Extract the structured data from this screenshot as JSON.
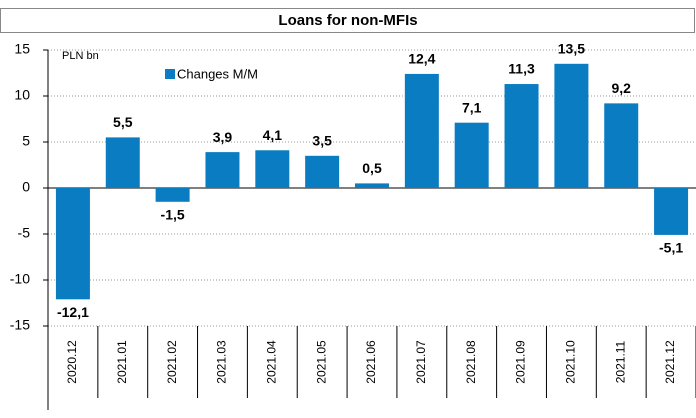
{
  "chart_data": {
    "type": "bar",
    "title": "Loans for non-MFIs",
    "unit_label": "PLN bn",
    "categories": [
      "2020.12",
      "2021.01",
      "2021.02",
      "2021.03",
      "2021.04",
      "2021.05",
      "2021.06",
      "2021.07",
      "2021.08",
      "2021.09",
      "2021.10",
      "2021.11",
      "2021.12"
    ],
    "series": [
      {
        "name": "Changes M/M",
        "color": "#0a7dc2",
        "values": [
          -12.1,
          5.5,
          -1.5,
          3.9,
          4.1,
          3.5,
          0.5,
          12.4,
          7.1,
          11.3,
          13.5,
          9.2,
          -5.1
        ],
        "value_labels": [
          "-12,1",
          "5,5",
          "-1,5",
          "3,9",
          "4,1",
          "3,5",
          "0,5",
          "12,4",
          "7,1",
          "11,3",
          "13,5",
          "9,2",
          "-5,1"
        ]
      }
    ],
    "ylim": [
      -15,
      15
    ],
    "yticks": [
      15,
      10,
      5,
      0,
      -5,
      -10,
      -15
    ],
    "grid": true
  }
}
